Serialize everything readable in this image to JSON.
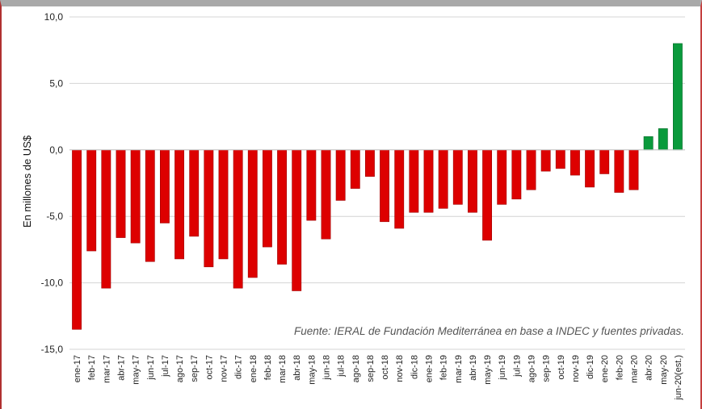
{
  "chart_data": {
    "type": "bar",
    "ylabel": "En millones de US$",
    "ylim": [
      -15,
      10
    ],
    "yticks": [
      "10,0",
      "5,0",
      "0,0",
      "-5,0",
      "-10,0",
      "-15,0"
    ],
    "grid": true,
    "source_note": "Fuente: IERAL de Fundación Mediterránea en base a INDEC y fuentes privadas.",
    "colors": {
      "negative": "#dd0000",
      "positive": "#0a9a3c"
    },
    "categories": [
      "ene-17",
      "feb-17",
      "mar-17",
      "abr-17",
      "may-17",
      "jun-17",
      "jul-17",
      "ago-17",
      "sep-17",
      "oct-17",
      "nov-17",
      "dic-17",
      "ene-18",
      "feb-18",
      "mar-18",
      "abr-18",
      "may-18",
      "jun-18",
      "jul-18",
      "ago-18",
      "sep-18",
      "oct-18",
      "nov-18",
      "dic-18",
      "ene-19",
      "feb-19",
      "mar-19",
      "abr-19",
      "may-19",
      "jun-19",
      "jul-19",
      "ago-19",
      "sep-19",
      "oct-19",
      "nov-19",
      "dic-19",
      "ene-20",
      "feb-20",
      "mar-20",
      "abr-20",
      "may-20",
      "jun-20(est.)"
    ],
    "values": [
      -13.5,
      -7.6,
      -10.4,
      -6.6,
      -7.0,
      -8.4,
      -5.5,
      -8.2,
      -6.5,
      -8.8,
      -8.2,
      -10.4,
      -9.6,
      -7.3,
      -8.6,
      -10.6,
      -5.3,
      -6.7,
      -3.8,
      -2.9,
      -2.0,
      -5.4,
      -5.9,
      -4.7,
      -4.7,
      -4.4,
      -4.1,
      -4.7,
      -6.8,
      -4.1,
      -3.7,
      -3.0,
      -1.6,
      -1.4,
      -1.9,
      -2.8,
      -1.8,
      -3.2,
      -3.0,
      1.0,
      1.6,
      8.0
    ]
  }
}
